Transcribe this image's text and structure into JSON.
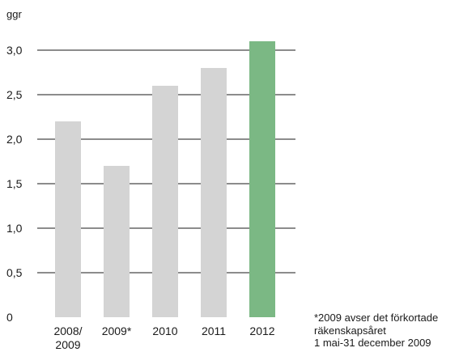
{
  "chart_data": {
    "type": "bar",
    "unit_label": "ggr",
    "categories": [
      [
        "2008/",
        "2009"
      ],
      [
        "2009*"
      ],
      [
        "2010"
      ],
      [
        "2011"
      ],
      [
        "2012"
      ]
    ],
    "values": [
      2.2,
      1.7,
      2.6,
      2.8,
      3.1
    ],
    "highlight_index": 4,
    "ylim": [
      0,
      3.0
    ],
    "yticks": [
      "0",
      "0,5",
      "1,0",
      "1,5",
      "2,0",
      "2,5",
      "3,0"
    ],
    "grid": true,
    "colors": {
      "bar": "#d4d4d4",
      "highlight": "#7bb884",
      "grid": "#1a1a1a"
    }
  },
  "footnote": {
    "line1": "*2009 avser det förkortade",
    "line2": "räkenskapsåret",
    "line3": "1 mai-31 december 2009"
  }
}
